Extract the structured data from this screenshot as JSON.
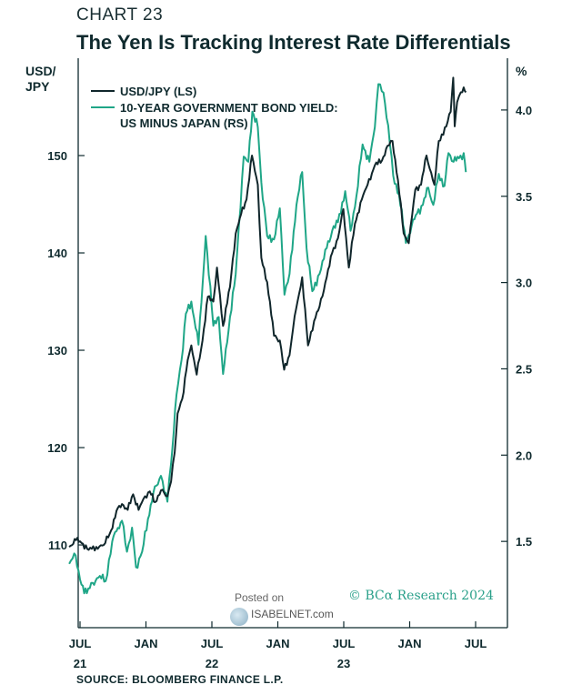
{
  "header": {
    "chart_number": "CHART 23",
    "title": "The Yen Is Tracking Interest Rate Differentials"
  },
  "axes": {
    "left_unit_line1": "USD/",
    "left_unit_line2": "JPY",
    "right_unit": "%"
  },
  "source": "SOURCE: BLOOMBERG FINANCE L.P.",
  "watermark": {
    "posted_on": "Posted on",
    "site": "ISABELNET.com"
  },
  "credit": "© BCα Research 2024",
  "colors": {
    "usdjpy": "#10262b",
    "yield_spread": "#1fa687",
    "axis": "#0f2a2e"
  },
  "chart_data": {
    "type": "line",
    "title": "The Yen Is Tracking Interest Rate Differentials",
    "left_axis": {
      "label": "USD/JPY",
      "ticks": [
        110,
        120,
        130,
        140,
        150
      ],
      "range": [
        101.5,
        160
      ]
    },
    "right_axis": {
      "label": "%",
      "ticks": [
        "1.5",
        "2.0",
        "2.5",
        "3.0",
        "3.5",
        "4.0"
      ],
      "range": [
        1.0,
        4.3
      ]
    },
    "x_ticks": [
      {
        "month": "JUL",
        "year": "21"
      },
      {
        "month": "JAN",
        "year": ""
      },
      {
        "month": "JUL",
        "year": "22"
      },
      {
        "month": "JAN",
        "year": ""
      },
      {
        "month": "JUL",
        "year": "23"
      },
      {
        "month": "JAN",
        "year": ""
      },
      {
        "month": "JUL",
        "year": ""
      }
    ],
    "legend": [
      {
        "label_lines": [
          "USD/JPY (LS)"
        ]
      },
      {
        "label_lines": [
          "10-YEAR GOVERNMENT BOND YIELD:",
          "US MINUS JAPAN (RS)"
        ]
      }
    ],
    "series": [
      {
        "name": "USD/JPY (LS)",
        "axis": "left",
        "points": [
          [
            "2021-06-01",
            109.8
          ],
          [
            "2021-06-20",
            110.5
          ],
          [
            "2021-07-05",
            110.2
          ],
          [
            "2021-07-25",
            109.5
          ],
          [
            "2021-08-15",
            109.8
          ],
          [
            "2021-09-05",
            110.0
          ],
          [
            "2021-09-25",
            111.5
          ],
          [
            "2021-10-10",
            113.5
          ],
          [
            "2021-10-25",
            114.2
          ],
          [
            "2021-11-10",
            113.6
          ],
          [
            "2021-11-25",
            115.2
          ],
          [
            "2021-12-10",
            113.6
          ],
          [
            "2021-12-28",
            115.0
          ],
          [
            "2022-01-10",
            115.5
          ],
          [
            "2022-01-25",
            114.4
          ],
          [
            "2022-02-10",
            115.6
          ],
          [
            "2022-02-28",
            115.0
          ],
          [
            "2022-03-10",
            116.5
          ],
          [
            "2022-03-20",
            119.5
          ],
          [
            "2022-03-28",
            123.5
          ],
          [
            "2022-04-10",
            125.0
          ],
          [
            "2022-04-25",
            129.0
          ],
          [
            "2022-05-05",
            130.5
          ],
          [
            "2022-05-20",
            127.5
          ],
          [
            "2022-06-05",
            131.0
          ],
          [
            "2022-06-20",
            135.5
          ],
          [
            "2022-07-05",
            135.0
          ],
          [
            "2022-07-15",
            138.5
          ],
          [
            "2022-08-01",
            132.5
          ],
          [
            "2022-08-20",
            136.5
          ],
          [
            "2022-09-05",
            142.0
          ],
          [
            "2022-09-20",
            144.0
          ],
          [
            "2022-10-05",
            145.5
          ],
          [
            "2022-10-20",
            150.0
          ],
          [
            "2022-11-05",
            147.0
          ],
          [
            "2022-11-15",
            139.5
          ],
          [
            "2022-12-01",
            137.0
          ],
          [
            "2022-12-20",
            131.5
          ],
          [
            "2023-01-05",
            131.0
          ],
          [
            "2023-01-17",
            128.0
          ],
          [
            "2023-02-01",
            129.5
          ],
          [
            "2023-02-15",
            133.5
          ],
          [
            "2023-03-08",
            137.5
          ],
          [
            "2023-03-24",
            130.5
          ],
          [
            "2023-04-10",
            133.0
          ],
          [
            "2023-04-25",
            134.5
          ],
          [
            "2023-05-15",
            137.5
          ],
          [
            "2023-05-30",
            140.0
          ],
          [
            "2023-06-15",
            141.5
          ],
          [
            "2023-06-30",
            144.5
          ],
          [
            "2023-07-15",
            138.5
          ],
          [
            "2023-08-01",
            143.0
          ],
          [
            "2023-08-20",
            145.5
          ],
          [
            "2023-09-05",
            147.0
          ],
          [
            "2023-09-25",
            149.0
          ],
          [
            "2023-10-15",
            149.5
          ],
          [
            "2023-10-30",
            151.0
          ],
          [
            "2023-11-13",
            151.5
          ],
          [
            "2023-11-28",
            147.5
          ],
          [
            "2023-12-14",
            142.0
          ],
          [
            "2023-12-28",
            141.0
          ],
          [
            "2024-01-15",
            146.5
          ],
          [
            "2024-01-31",
            147.0
          ],
          [
            "2024-02-15",
            150.0
          ],
          [
            "2024-03-08",
            147.0
          ],
          [
            "2024-03-20",
            151.5
          ],
          [
            "2024-04-10",
            153.0
          ],
          [
            "2024-04-22",
            154.5
          ],
          [
            "2024-04-29",
            158.0
          ],
          [
            "2024-05-03",
            153.0
          ],
          [
            "2024-05-10",
            155.5
          ],
          [
            "2024-05-20",
            156.5
          ],
          [
            "2024-05-28",
            157.0
          ],
          [
            "2024-06-03",
            156.5
          ]
        ]
      },
      {
        "name": "10-YEAR GOVERNMENT BOND YIELD: US MINUS JAPAN (RS)",
        "axis": "right",
        "points": [
          [
            "2021-06-01",
            1.37
          ],
          [
            "2021-06-15",
            1.43
          ],
          [
            "2021-07-05",
            1.25
          ],
          [
            "2021-07-20",
            1.2
          ],
          [
            "2021-08-05",
            1.26
          ],
          [
            "2021-08-25",
            1.3
          ],
          [
            "2021-09-10",
            1.27
          ],
          [
            "2021-09-28",
            1.5
          ],
          [
            "2021-10-10",
            1.56
          ],
          [
            "2021-10-25",
            1.62
          ],
          [
            "2021-11-08",
            1.44
          ],
          [
            "2021-11-22",
            1.58
          ],
          [
            "2021-12-03",
            1.35
          ],
          [
            "2021-12-20",
            1.44
          ],
          [
            "2022-01-05",
            1.63
          ],
          [
            "2022-01-20",
            1.78
          ],
          [
            "2022-02-10",
            1.88
          ],
          [
            "2022-02-28",
            1.73
          ],
          [
            "2022-03-10",
            1.95
          ],
          [
            "2022-03-25",
            2.35
          ],
          [
            "2022-04-08",
            2.55
          ],
          [
            "2022-04-20",
            2.82
          ],
          [
            "2022-05-05",
            2.89
          ],
          [
            "2022-05-25",
            2.64
          ],
          [
            "2022-06-14",
            3.27
          ],
          [
            "2022-07-05",
            2.75
          ],
          [
            "2022-07-20",
            2.8
          ],
          [
            "2022-08-01",
            2.47
          ],
          [
            "2022-08-20",
            2.8
          ],
          [
            "2022-09-05",
            3.05
          ],
          [
            "2022-09-27",
            3.73
          ],
          [
            "2022-10-10",
            3.7
          ],
          [
            "2022-10-21",
            3.99
          ],
          [
            "2022-11-05",
            3.9
          ],
          [
            "2022-11-15",
            3.58
          ],
          [
            "2022-12-01",
            3.27
          ],
          [
            "2022-12-20",
            3.25
          ],
          [
            "2023-01-05",
            3.43
          ],
          [
            "2023-01-18",
            2.93
          ],
          [
            "2023-02-01",
            3.05
          ],
          [
            "2023-02-20",
            3.45
          ],
          [
            "2023-03-08",
            3.64
          ],
          [
            "2023-03-20",
            3.2
          ],
          [
            "2023-04-05",
            2.95
          ],
          [
            "2023-04-25",
            3.05
          ],
          [
            "2023-05-15",
            3.2
          ],
          [
            "2023-05-30",
            3.3
          ],
          [
            "2023-06-15",
            3.35
          ],
          [
            "2023-07-05",
            3.53
          ],
          [
            "2023-07-20",
            3.3
          ],
          [
            "2023-08-05",
            3.5
          ],
          [
            "2023-08-22",
            3.8
          ],
          [
            "2023-09-10",
            3.7
          ],
          [
            "2023-09-25",
            3.9
          ],
          [
            "2023-10-05",
            4.15
          ],
          [
            "2023-10-19",
            4.1
          ],
          [
            "2023-11-01",
            3.91
          ],
          [
            "2023-11-15",
            3.62
          ],
          [
            "2023-12-01",
            3.51
          ],
          [
            "2023-12-20",
            3.23
          ],
          [
            "2024-01-05",
            3.33
          ],
          [
            "2024-01-20",
            3.4
          ],
          [
            "2024-02-05",
            3.45
          ],
          [
            "2024-02-20",
            3.55
          ],
          [
            "2024-03-05",
            3.45
          ],
          [
            "2024-03-20",
            3.63
          ],
          [
            "2024-04-05",
            3.56
          ],
          [
            "2024-04-16",
            3.75
          ],
          [
            "2024-04-30",
            3.7
          ],
          [
            "2024-05-15",
            3.72
          ],
          [
            "2024-05-28",
            3.75
          ],
          [
            "2024-06-03",
            3.64
          ]
        ]
      }
    ],
    "grid": false,
    "legend_position": "top-left"
  }
}
